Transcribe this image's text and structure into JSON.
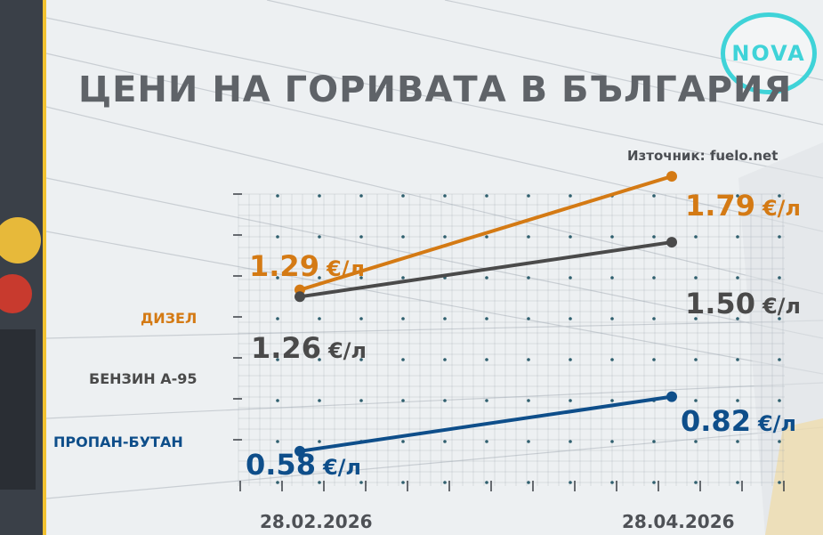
{
  "title": "ЦЕНИ НА ГОРИВАТА В БЪЛГАРИЯ",
  "source": "Източник: fuelo.net",
  "logo": "NOVA",
  "colors": {
    "diesel": "#d47a14",
    "petrol": "#4a4a4a",
    "lpg": "#0e4e8a",
    "grid": "#98a4ad",
    "accent_yellow": "#f2c230",
    "logo": "#3fd3d8"
  },
  "chart_data": {
    "type": "line",
    "x": [
      "28.02.2026",
      "28.04.2026"
    ],
    "series": [
      {
        "name": "ДИЗЕЛ",
        "values": [
          1.29,
          1.79
        ],
        "labels": [
          "1.29",
          "1.79"
        ],
        "unit": "€/л",
        "color": "#d47a14"
      },
      {
        "name": "БЕНЗИН А-95",
        "values": [
          1.26,
          1.5
        ],
        "labels": [
          "1.26",
          "1.50"
        ],
        "unit": "€/л",
        "color": "#4a4a4a"
      },
      {
        "name": "ПРОПАН-БУТАН",
        "values": [
          0.58,
          0.82
        ],
        "labels": [
          "0.58",
          "0.82"
        ],
        "unit": "€/л",
        "color": "#0e4e8a"
      }
    ]
  }
}
